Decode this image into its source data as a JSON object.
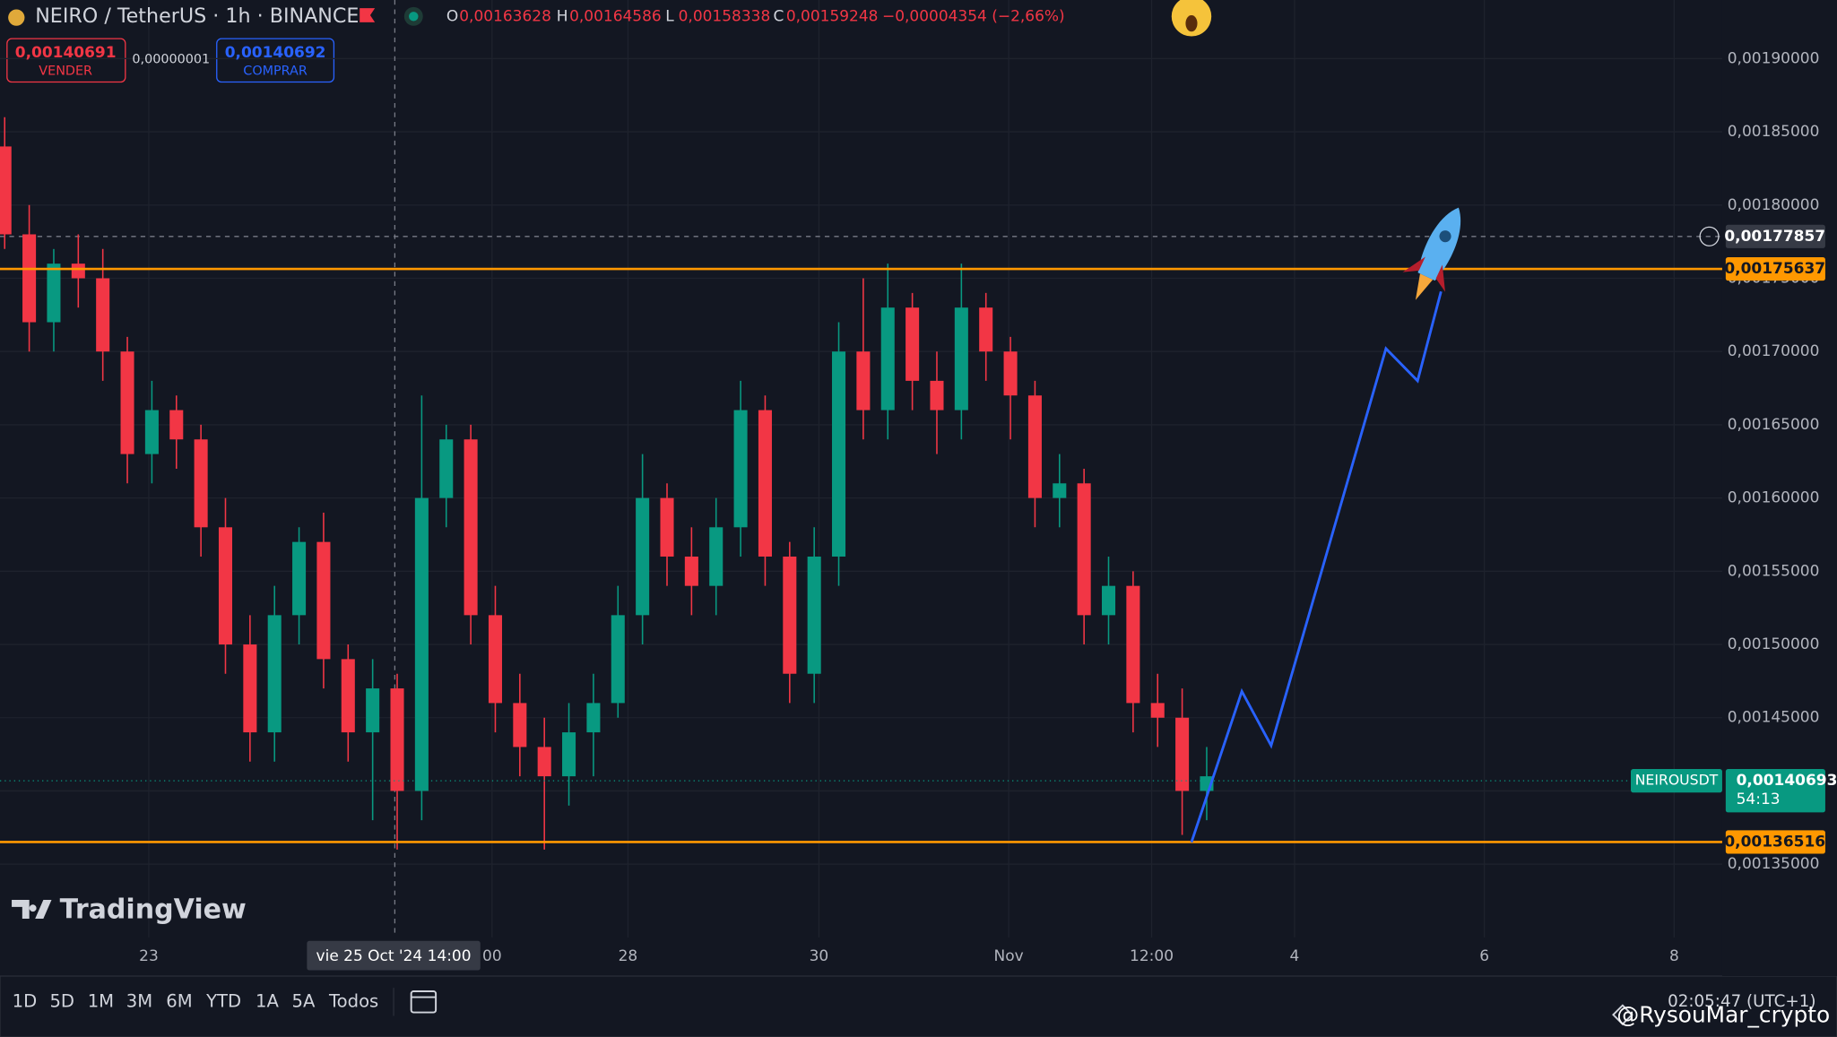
{
  "header": {
    "title": "NEIRO / TetherUS · 1h · BINANCE",
    "ohlc": [
      {
        "key": "O",
        "value": "0,00163628"
      },
      {
        "key": "H",
        "value": "0,00164586"
      },
      {
        "key": "L",
        "value": "0,00158338"
      },
      {
        "key": "C",
        "value": "0,00159248"
      }
    ],
    "change": "−0,00004354 (−2,66%)"
  },
  "order_panel": {
    "sell_price": "0,00140691",
    "sell_label": "VENDER",
    "spread": "0,00000001",
    "buy_price": "0,00140692",
    "buy_label": "COMPRAR"
  },
  "chart_data": {
    "type": "candlestick",
    "up_color": "#089981",
    "down_color": "#f23645",
    "open": [
      0.00184,
      0.00178,
      0.00172,
      0.00176,
      0.00175,
      0.0017,
      0.00163,
      0.00166,
      0.00164,
      0.00158,
      0.0015,
      0.00144,
      0.00152,
      0.00157,
      0.00149,
      0.00144,
      0.00147,
      0.0014,
      0.0016,
      0.00164,
      0.00152,
      0.00146,
      0.00143,
      0.00141,
      0.00144,
      0.00146,
      0.00152,
      0.0016,
      0.00156,
      0.00154,
      0.00158,
      0.00166,
      0.00156,
      0.00148,
      0.00156,
      0.0017,
      0.00166,
      0.00173,
      0.00168,
      0.00166,
      0.00173,
      0.0017,
      0.00167,
      0.0016,
      0.00161,
      0.00152,
      0.00154,
      0.00146,
      0.00145,
      0.0014
    ],
    "high": [
      0.00186,
      0.0018,
      0.00177,
      0.00178,
      0.00177,
      0.00171,
      0.00168,
      0.00167,
      0.00165,
      0.0016,
      0.00152,
      0.00154,
      0.00158,
      0.00159,
      0.0015,
      0.00149,
      0.00148,
      0.00167,
      0.00165,
      0.00165,
      0.00154,
      0.00148,
      0.00145,
      0.00146,
      0.00148,
      0.00154,
      0.00163,
      0.00161,
      0.00158,
      0.0016,
      0.00168,
      0.00167,
      0.00157,
      0.00158,
      0.00172,
      0.00175,
      0.00176,
      0.00174,
      0.0017,
      0.00176,
      0.00174,
      0.00171,
      0.00168,
      0.00163,
      0.00162,
      0.00156,
      0.00155,
      0.00148,
      0.00147,
      0.00143
    ],
    "low": [
      0.00177,
      0.0017,
      0.0017,
      0.00173,
      0.00168,
      0.00161,
      0.00161,
      0.00162,
      0.00156,
      0.00148,
      0.00142,
      0.00142,
      0.0015,
      0.00147,
      0.00142,
      0.00138,
      0.00136,
      0.00138,
      0.00158,
      0.0015,
      0.00144,
      0.00141,
      0.00136,
      0.00139,
      0.00141,
      0.00145,
      0.0015,
      0.00154,
      0.00152,
      0.00152,
      0.00156,
      0.00154,
      0.00146,
      0.00146,
      0.00154,
      0.00164,
      0.00164,
      0.00166,
      0.00163,
      0.00164,
      0.00168,
      0.00164,
      0.00158,
      0.00158,
      0.0015,
      0.0015,
      0.00144,
      0.00143,
      0.00137,
      0.00138
    ],
    "close": [
      0.00178,
      0.00172,
      0.00176,
      0.00175,
      0.0017,
      0.00163,
      0.00166,
      0.00164,
      0.00158,
      0.0015,
      0.00144,
      0.00152,
      0.00157,
      0.00149,
      0.00144,
      0.00147,
      0.0014,
      0.0016,
      0.00164,
      0.00152,
      0.00146,
      0.00143,
      0.00141,
      0.00144,
      0.00146,
      0.00152,
      0.0016,
      0.00156,
      0.00154,
      0.00158,
      0.00166,
      0.00156,
      0.00148,
      0.00156,
      0.0017,
      0.00166,
      0.00173,
      0.00168,
      0.00166,
      0.00173,
      0.0017,
      0.00167,
      0.0016,
      0.00161,
      0.00152,
      0.00154,
      0.00146,
      0.00145,
      0.0014,
      0.00141
    ],
    "ylim": [
      0.0013,
      0.00194
    ],
    "yticks": [
      {
        "value": 0.00135,
        "label": "0,00135000"
      },
      {
        "value": 0.0014,
        "label": "0,00140000"
      },
      {
        "value": 0.00145,
        "label": "0,00145000"
      },
      {
        "value": 0.0015,
        "label": "0,00150000"
      },
      {
        "value": 0.00155,
        "label": "0,00155000"
      },
      {
        "value": 0.0016,
        "label": "0,00160000"
      },
      {
        "value": 0.00165,
        "label": "0,00165000"
      },
      {
        "value": 0.0017,
        "label": "0,00170000"
      },
      {
        "value": 0.00175,
        "label": "0,00175000"
      },
      {
        "value": 0.0018,
        "label": "0,00180000"
      },
      {
        "value": 0.00185,
        "label": "0,00185000"
      },
      {
        "value": 0.0019,
        "label": "0,00190000"
      }
    ],
    "xticks": [
      "23",
      "00",
      "28",
      "30",
      "Nov",
      "12:00",
      "4",
      "6",
      "8"
    ],
    "grid": true,
    "levels": [
      {
        "value": 0.00175637,
        "label": "0,00175637",
        "color": "#ff9800"
      },
      {
        "value": 0.00136516,
        "label": "0,00136516",
        "color": "#ff9800"
      }
    ],
    "crosshair": {
      "value": 0.00177857,
      "label": "0,00177857",
      "time_label": "vie 25 Oct '24   14:00"
    },
    "last_price": {
      "value": 0.00140693,
      "label": "0,00140693",
      "symbol": "NEIROUSDT",
      "countdown": "54:13",
      "color": "#089981"
    },
    "projection": {
      "color": "#2962ff",
      "values": [
        0.001365,
        0.001468,
        0.001431,
        0.001702,
        0.00168,
        0.001741
      ]
    }
  },
  "branding": "TradingView",
  "toolbar": {
    "ranges": [
      "1D",
      "5D",
      "1M",
      "3M",
      "6M",
      "YTD",
      "1A",
      "5A",
      "Todos"
    ],
    "clock": "02:05:47 (UTC+1)"
  },
  "watermark": "@RysouMar_crypto"
}
